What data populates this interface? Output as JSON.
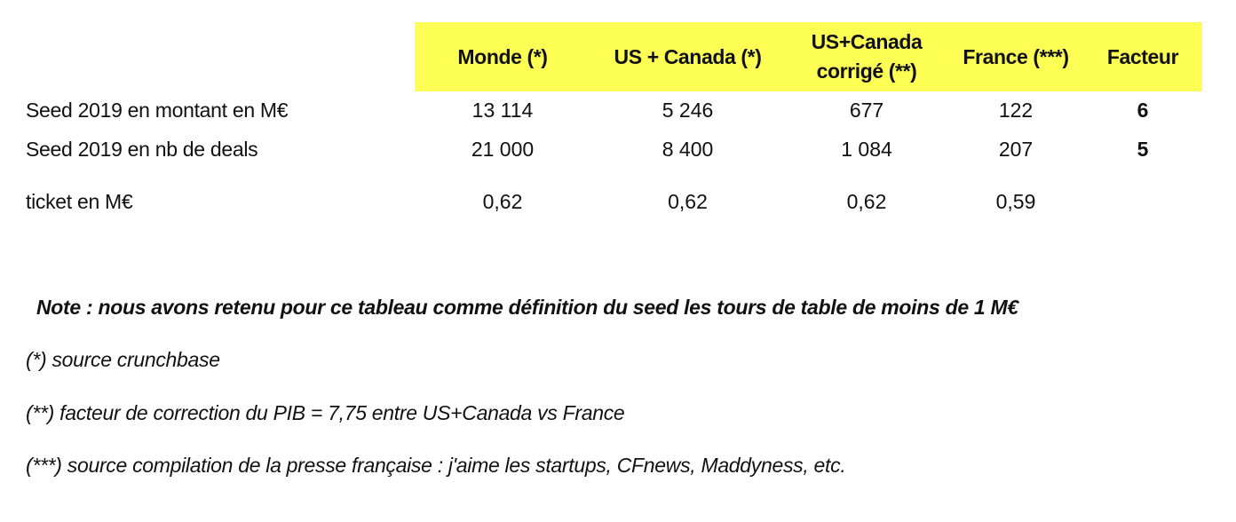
{
  "table": {
    "columns": [
      "Monde (*)",
      "US + Canada (*)",
      "US+Canada corrigé (**)",
      "France (***)",
      "Facteur"
    ],
    "column_lines": {
      "us_canada_corrige": [
        "US+Canada",
        "corrigé (**)"
      ]
    },
    "rows": [
      {
        "label": "Seed 2019 en montant en M€",
        "cells": [
          "13 114",
          "5 246",
          "677",
          "122",
          "6"
        ]
      },
      {
        "label": "Seed 2019 en nb de deals",
        "cells": [
          "21 000",
          "8 400",
          "1 084",
          "207",
          "5"
        ]
      },
      {
        "label": "ticket en M€",
        "cells": [
          "0,62",
          "0,62",
          "0,62",
          "0,59",
          ""
        ]
      }
    ],
    "header_color": "#fdff55"
  },
  "notes": {
    "main": "Note : nous avons retenu pour ce tableau comme définition du seed les tours de table de moins de 1 M€",
    "source1": "(*) source crunchbase",
    "source2": "(**) facteur de correction du PIB = 7,75 entre US+Canada vs France",
    "source3": "(***) source compilation de la presse française : j'aime les startups, CFnews, Maddyness, etc."
  }
}
